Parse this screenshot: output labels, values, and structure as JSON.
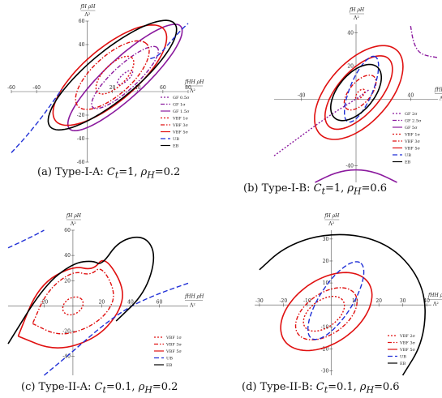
{
  "panels": [
    {
      "id": "a",
      "caption": "(a) Type-I-A: ",
      "caption_math": "Ct=1, ρH=0.2",
      "ylabel_top": "fH ρH",
      "ylabel_bottom": "Λ²",
      "xlabel_top": "fHH ρH",
      "xlabel_bottom": "Λ²"
    },
    {
      "id": "b",
      "caption": "(b) Type-I-B: ",
      "caption_math": "Ct=1, ρH=0.6",
      "ylabel_top": "fH ρH",
      "ylabel_bottom": "Λ²",
      "xlabel_top": "fHH ρH",
      "xlabel_bottom": "Λ²"
    },
    {
      "id": "c",
      "caption": "(c) Type-II-A: ",
      "caption_math": "Ct=0.1, ρH=0.2",
      "ylabel_top": "fH ρH",
      "ylabel_bottom": "Λ²",
      "xlabel_top": "fHH ρH",
      "xlabel_bottom": "Λ²"
    },
    {
      "id": "d",
      "caption": "(d) Type-II-B: ",
      "caption_math": "Ct=0.1, ρH=0.6",
      "ylabel_top": "fH ρH",
      "ylabel_bottom": "Λ²",
      "xlabel_top": "fHH ρH",
      "xlabel_bottom": "Λ²"
    }
  ],
  "chart_data": [
    {
      "type": "line",
      "panel": "a",
      "title": "(a) Type-I-A: Ct=1, ρH=0.2",
      "xlabel": "fHH ρH / Λ²",
      "ylabel": "fH ρH / Λ²",
      "xlim": [
        -60,
        80
      ],
      "ylim": [
        -60,
        60
      ],
      "xticks": [
        "-60",
        "-40",
        "20",
        "40",
        "60",
        "80"
      ],
      "yticks": [
        "60",
        "40",
        "-20",
        "-40",
        "-60"
      ],
      "legend": [
        "GF 0.5σ",
        "GF 1σ",
        "GF 1.5σ",
        "VBF 1σ",
        "VBF 3σ",
        "VBF 5σ",
        "UB",
        "EB"
      ],
      "series": [
        {
          "name": "GF 0.5σ",
          "color": "#8b1a9e",
          "style": "dotted",
          "ellipse": {
            "cx": 30,
            "cy": 12,
            "rx": 8,
            "ry": 3,
            "angle": 45
          }
        },
        {
          "name": "GF 1σ",
          "color": "#8b1a9e",
          "style": "dashdot",
          "ellipse": {
            "cx": 30,
            "cy": 12,
            "rx": 36,
            "ry": 10,
            "angle": 45
          }
        },
        {
          "name": "GF 1.5σ",
          "color": "#8b1a9e",
          "style": "solid",
          "ellipse": {
            "cx": 30,
            "cy": 12,
            "rx": 62,
            "ry": 16,
            "angle": 45
          }
        },
        {
          "name": "VBF 1σ",
          "color": "#e01010",
          "style": "dotted",
          "ellipse": {
            "cx": 22,
            "cy": 14,
            "rx": 20,
            "ry": 9,
            "angle": 48
          }
        },
        {
          "name": "VBF 3σ",
          "color": "#e01010",
          "style": "dashdot",
          "ellipse": {
            "cx": 20,
            "cy": 14,
            "rx": 38,
            "ry": 16,
            "angle": 45
          }
        },
        {
          "name": "VBF 5σ",
          "color": "#e01010",
          "style": "solid",
          "ellipse": {
            "cx": 18,
            "cy": 14,
            "rx": 58,
            "ry": 22,
            "angle": 43
          }
        },
        {
          "name": "EB",
          "color": "#000000",
          "style": "solid",
          "ellipse": {
            "cx": 20,
            "cy": 14,
            "rx": 66,
            "ry": 20,
            "angle": 42
          }
        },
        {
          "name": "UB",
          "color": "#1f2fd6",
          "style": "dashed",
          "x": [
            -60,
            -48,
            -36,
            -28,
            -20
          ],
          "y": [
            -52,
            -38,
            -22,
            -10,
            2
          ]
        },
        {
          "name": "UB",
          "color": "#1f2fd6",
          "style": "dashed",
          "x": [
            50,
            56,
            64,
            74,
            80
          ],
          "y": [
            28,
            30,
            40,
            52,
            58
          ]
        }
      ]
    },
    {
      "type": "line",
      "panel": "b",
      "title": "(b) Type-I-B: Ct=1, ρH=0.6",
      "xlabel": "fHH ρH / Λ²",
      "ylabel": "fH ρH / Λ²",
      "xlim": [
        -60,
        60
      ],
      "ylim": [
        -50,
        45
      ],
      "xticks": [
        "-40",
        "40"
      ],
      "yticks": [
        "40",
        "20",
        "-40"
      ],
      "legend": [
        "GF 2σ",
        "GF 2.5σ",
        "GF 5σ",
        "VBF 1σ",
        "VBF 3σ",
        "VBF 5σ",
        "UB",
        "EB"
      ],
      "series": [
        {
          "name": "GF 2σ",
          "color": "#8b1a9e",
          "style": "dotted",
          "x": [
            -60,
            -40,
            -20,
            0,
            10
          ],
          "y": [
            -34,
            -22,
            -10,
            0,
            6
          ]
        },
        {
          "name": "GF 2.5σ",
          "color": "#8b1a9e",
          "style": "dashdot",
          "x": [
            40,
            42,
            46,
            52,
            60
          ],
          "y": [
            44,
            34,
            28,
            26,
            25
          ]
        },
        {
          "name": "GF 5σ",
          "color": "#8b1a9e",
          "style": "solid",
          "x": [
            -30,
            -15,
            0,
            15,
            30
          ],
          "y": [
            -50,
            -44,
            -42,
            -44,
            -50
          ]
        },
        {
          "name": "VBF 1σ",
          "color": "#e01010",
          "style": "dotted",
          "ellipse": {
            "cx": 3,
            "cy": 3,
            "rx": 4,
            "ry": 2,
            "angle": 40
          }
        },
        {
          "name": "VBF 3σ",
          "color": "#e01010",
          "style": "dashdot",
          "ellipse": {
            "cx": 3,
            "cy": 4,
            "rx": 14,
            "ry": 7,
            "angle": 40
          }
        },
        {
          "name": "VBF 5σ",
          "color": "#e01010",
          "style": "solid",
          "ellipse": {
            "cx": 2,
            "cy": 4,
            "rx": 30,
            "ry": 14,
            "angle": 40
          }
        },
        {
          "name": "VBF 5σ",
          "color": "#e01010",
          "style": "solid",
          "ellipse": {
            "cx": 2,
            "cy": 4,
            "rx": 38,
            "ry": 20,
            "angle": 38
          }
        },
        {
          "name": "UB",
          "color": "#1f2fd6",
          "style": "dashed",
          "ellipse": {
            "cx": 4,
            "cy": 6,
            "rx": 22,
            "ry": 8,
            "angle": 62
          }
        },
        {
          "name": "EB",
          "color": "#000000",
          "style": "solid",
          "ellipse": {
            "cx": 0,
            "cy": 4,
            "rx": 22,
            "ry": 12,
            "angle": 40
          }
        }
      ]
    },
    {
      "type": "line",
      "panel": "c",
      "title": "(c) Type-II-A: Ct=0.1, ρH=0.2",
      "xlabel": "fHH ρH / Λ²",
      "ylabel": "fH ρH / Λ²",
      "xlim": [
        -45,
        80
      ],
      "ylim": [
        -55,
        60
      ],
      "xticks": [
        "-20",
        "20",
        "40",
        "60"
      ],
      "yticks": [
        "60",
        "40",
        "20",
        "-20",
        "-40"
      ],
      "legend": [
        "VBF 1σ",
        "VBF 3σ",
        "VBF 5σ",
        "UB",
        "EB"
      ],
      "series": [
        {
          "name": "VBF 1σ",
          "color": "#e01010",
          "style": "dotted",
          "ellipse": {
            "cx": 0,
            "cy": 0,
            "rx": 8,
            "ry": 6,
            "angle": 45
          }
        },
        {
          "name": "VBF 3σ",
          "color": "#e01010",
          "style": "dashdot",
          "x": [
            -28,
            -10,
            10,
            24,
            30,
            20,
            12,
            0,
            -18,
            -28
          ],
          "y": [
            -14,
            -24,
            -18,
            -6,
            10,
            32,
            24,
            28,
            12,
            -14
          ]
        },
        {
          "name": "VBF 5σ",
          "color": "#e01010",
          "style": "solid",
          "x": [
            -38,
            -12,
            16,
            32,
            36,
            22,
            14,
            0,
            -24,
            -38
          ],
          "y": [
            -24,
            -36,
            -26,
            -6,
            14,
            40,
            28,
            32,
            16,
            -24
          ]
        },
        {
          "name": "UB",
          "color": "#1f2fd6",
          "style": "dashed",
          "x": [
            -45,
            -30,
            -20
          ],
          "y": [
            46,
            54,
            60
          ]
        },
        {
          "name": "UB",
          "color": "#1f2fd6",
          "style": "dashed",
          "x": [
            -20,
            0,
            20,
            40,
            60,
            80
          ],
          "y": [
            -55,
            -36,
            -16,
            0,
            10,
            18
          ]
        },
        {
          "name": "EB",
          "color": "#000000",
          "style": "solid",
          "x": [
            -45,
            -20,
            0,
            14,
            20,
            32,
            50,
            58,
            50,
            30
          ],
          "y": [
            -30,
            16,
            34,
            36,
            32,
            52,
            56,
            40,
            10,
            -12
          ]
        }
      ]
    },
    {
      "type": "line",
      "panel": "d",
      "title": "(d) Type-II-B: Ct=0.1, ρH=0.6",
      "xlabel": "fHH ρH / Λ²",
      "ylabel": "fH ρH / Λ²",
      "xlim": [
        -32,
        42
      ],
      "ylim": [
        -32,
        34
      ],
      "xticks": [
        "-30",
        "-20",
        "-10",
        "10",
        "20",
        "30",
        "40"
      ],
      "yticks": [
        "30",
        "20",
        "10",
        "-10",
        "-20",
        "-30"
      ],
      "legend": [
        "VBF 2σ",
        "VBF 3σ",
        "VBF 5σ",
        "UB",
        "EB"
      ],
      "series": [
        {
          "name": "VBF 2σ",
          "color": "#e01010",
          "style": "dotted",
          "ellipse": {
            "cx": -3,
            "cy": -4,
            "rx": 10,
            "ry": 6,
            "angle": 40
          }
        },
        {
          "name": "VBF 3σ",
          "color": "#e01010",
          "style": "dashdot",
          "ellipse": {
            "cx": -2,
            "cy": -4,
            "rx": 15,
            "ry": 9,
            "angle": 40
          }
        },
        {
          "name": "VBF 5σ",
          "color": "#e01010",
          "style": "solid",
          "ellipse": {
            "cx": -2,
            "cy": -3,
            "rx": 22,
            "ry": 14,
            "angle": 40
          }
        },
        {
          "name": "UB",
          "color": "#1f2fd6",
          "style": "dashed",
          "ellipse": {
            "cx": 2,
            "cy": 2,
            "rx": 20,
            "ry": 7,
            "angle": 60
          }
        },
        {
          "name": "EB",
          "color": "#000000",
          "style": "solid",
          "x": [
            -30,
            -20,
            -5,
            12,
            26,
            36,
            40,
            38,
            30
          ],
          "y": [
            16,
            26,
            32,
            32,
            26,
            14,
            0,
            -18,
            -32
          ]
        }
      ]
    }
  ]
}
